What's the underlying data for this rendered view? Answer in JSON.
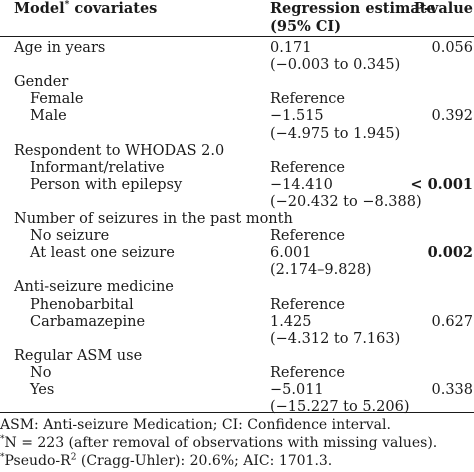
{
  "header": {
    "col1_main": "Model",
    "col1_sup": "*",
    "col1_rest": " covariates",
    "col2_line1": "Regression estimate",
    "col2_line2": "(95% CI)",
    "col3": "P-value"
  },
  "rows": [
    {
      "label": "Age in years",
      "indent": false,
      "estimate": "0.171",
      "pvalue": "0.056",
      "pbold": false
    },
    {
      "label": "",
      "indent": false,
      "estimate": "(−0.003 to 0.345)",
      "pvalue": "",
      "pbold": false
    },
    {
      "label": "Gender",
      "indent": false,
      "estimate": "",
      "pvalue": "",
      "pbold": false
    },
    {
      "label": "Female",
      "indent": true,
      "estimate": "Reference",
      "pvalue": "",
      "pbold": false
    },
    {
      "label": "Male",
      "indent": true,
      "estimate": "−1.515",
      "pvalue": "0.392",
      "pbold": false
    },
    {
      "label": "",
      "indent": false,
      "estimate": "(−4.975 to 1.945)",
      "pvalue": "",
      "pbold": false
    },
    {
      "label": "Respondent to WHODAS 2.0",
      "indent": false,
      "estimate": "",
      "pvalue": "",
      "pbold": false
    },
    {
      "label": "Informant/relative",
      "indent": true,
      "estimate": "Reference",
      "pvalue": "",
      "pbold": false
    },
    {
      "label": "Person with epilepsy",
      "indent": true,
      "estimate": "−14.410",
      "pvalue": "< 0.001",
      "pbold": true
    },
    {
      "label": "",
      "indent": false,
      "estimate": "(−20.432 to −8.388)",
      "pvalue": "",
      "pbold": false
    },
    {
      "label": "Number of seizures in the past month",
      "indent": false,
      "estimate": "",
      "pvalue": "",
      "pbold": false
    },
    {
      "label": "No seizure",
      "indent": true,
      "estimate": "Reference",
      "pvalue": "",
      "pbold": false
    },
    {
      "label": "At least one seizure",
      "indent": true,
      "estimate": "6.001",
      "pvalue": "0.002",
      "pbold": true
    },
    {
      "label": "",
      "indent": false,
      "estimate": "(2.174–9.828)",
      "pvalue": "",
      "pbold": false
    },
    {
      "label": "Anti-seizure medicine",
      "indent": false,
      "estimate": "",
      "pvalue": "",
      "pbold": false
    },
    {
      "label": "Phenobarbital",
      "indent": true,
      "estimate": "Reference",
      "pvalue": "",
      "pbold": false
    },
    {
      "label": "Carbamazepine",
      "indent": true,
      "estimate": "1.425",
      "pvalue": "0.627",
      "pbold": false
    },
    {
      "label": "",
      "indent": false,
      "estimate": "(−4.312 to 7.163)",
      "pvalue": "",
      "pbold": false
    },
    {
      "label": "Regular ASM use",
      "indent": false,
      "estimate": "",
      "pvalue": "",
      "pbold": false
    },
    {
      "label": "No",
      "indent": true,
      "estimate": "Reference",
      "pvalue": "",
      "pbold": false
    },
    {
      "label": "Yes",
      "indent": true,
      "estimate": "−5.011",
      "pvalue": "0.338",
      "pbold": false
    },
    {
      "label": "",
      "indent": false,
      "estimate": "(−15.227 to 5.206)",
      "pvalue": "",
      "pbold": false
    }
  ],
  "footnotes": {
    "abbrev": "ASM: Anti-seizure Medication; CI: Confidence interval.",
    "n_sup": "*",
    "n_text": "N = 223 (after removal of observations with missing values).",
    "r2_sup": "*",
    "r2_text_a": "Pseudo-R",
    "r2_text_exp": "2",
    "r2_text_b": " (Cragg-Uhler): 20.6%; AIC: 1701.3."
  }
}
